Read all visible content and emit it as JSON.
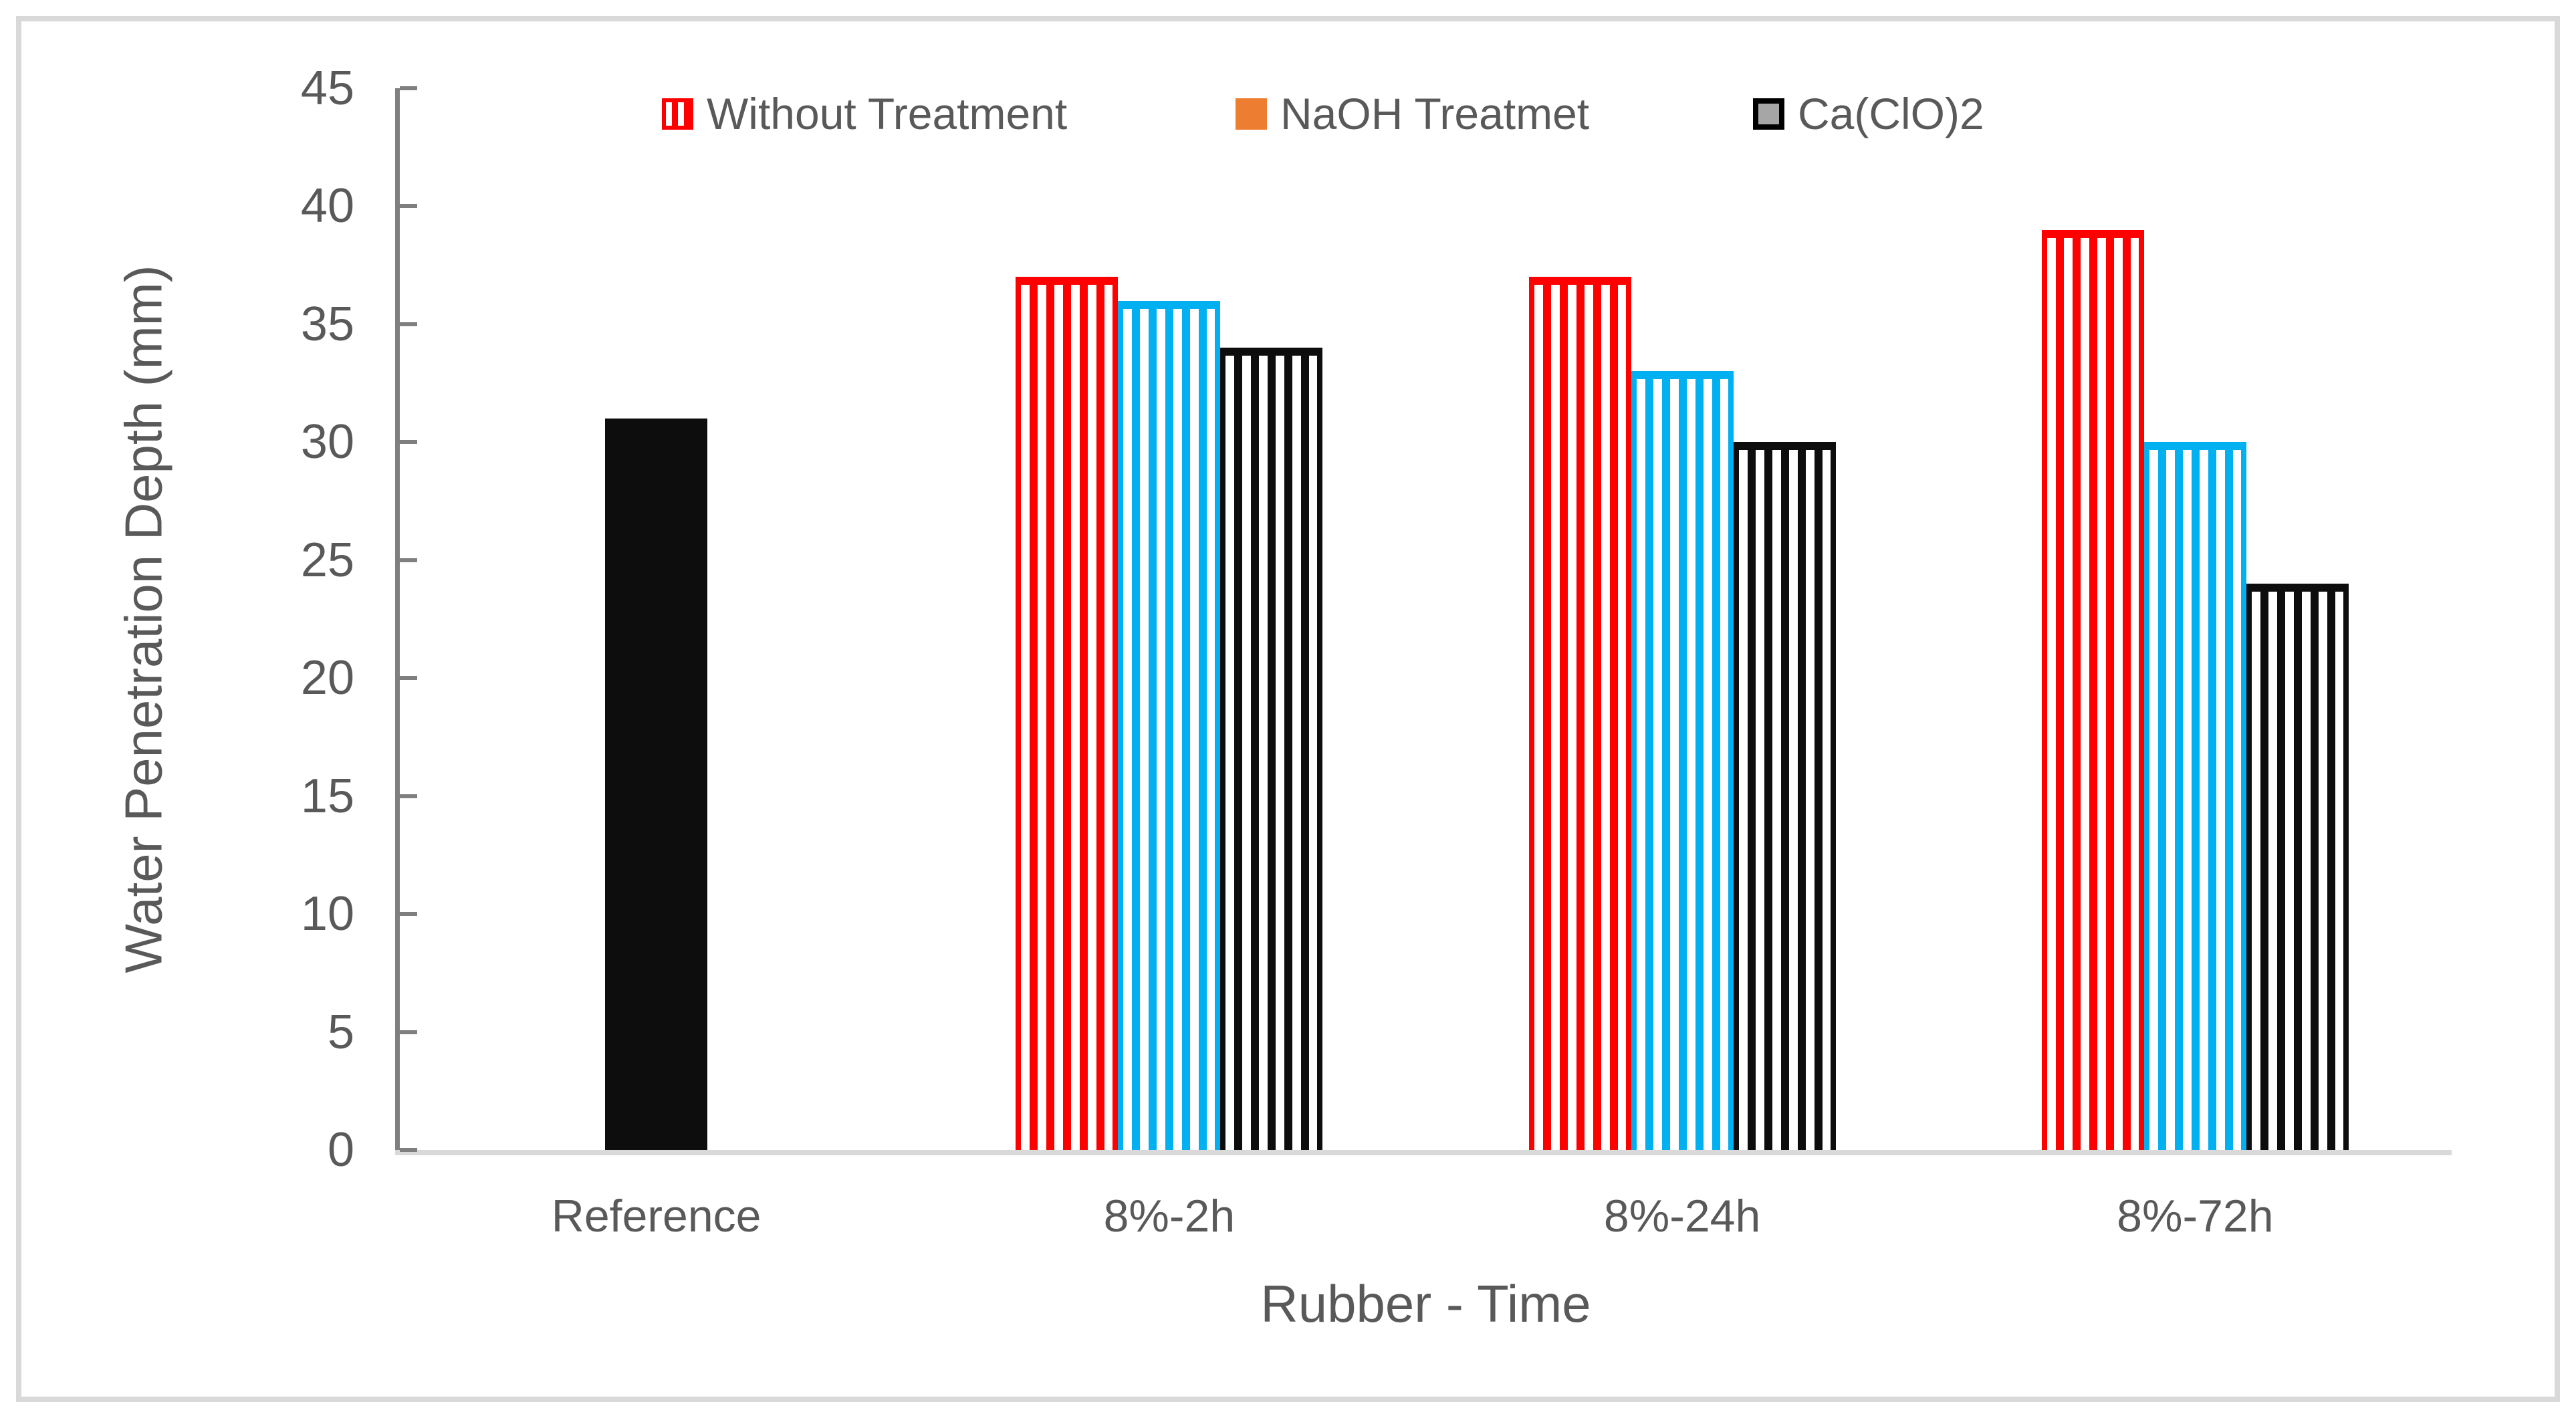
{
  "chart_data": {
    "type": "bar",
    "title": "",
    "xlabel": "Rubber - Time",
    "ylabel": "Water Penetration Depth (mm)",
    "categories": [
      "Reference",
      "8%-2h",
      "8%-24h",
      "8%-72h"
    ],
    "series": [
      {
        "name": "Reference",
        "style": "solid",
        "color": "#0d0d0d",
        "values": [
          31,
          null,
          null,
          null
        ]
      },
      {
        "name": "Without Treatment",
        "style": "striped",
        "color": "#ff0000",
        "values": [
          null,
          37,
          37,
          39
        ]
      },
      {
        "name": "NaOH Treatmet",
        "style": "striped",
        "color": "#00b0f0",
        "values": [
          null,
          36,
          33,
          30
        ]
      },
      {
        "name": "Ca(ClO)2",
        "style": "striped",
        "color": "#0d0d0d",
        "values": [
          null,
          34,
          30,
          24
        ]
      }
    ],
    "ylim": [
      0,
      45
    ],
    "ytick_step": 5,
    "yticks": [
      45,
      40,
      35,
      30,
      25,
      20,
      15,
      10,
      5,
      0
    ],
    "grid": false,
    "legend_position": "top"
  },
  "legend": {
    "items": [
      {
        "label": "Without Treatment",
        "swatch": "red-striped",
        "color": "#ff0000"
      },
      {
        "label": "NaOH Treatmet",
        "swatch": "solid-orange",
        "color": "#ed7d31"
      },
      {
        "label": "Ca(ClO)2",
        "swatch": "gray-black-border",
        "fill": "#a6a6a6",
        "border": "#000000"
      }
    ]
  },
  "colors": {
    "text": "#595959",
    "y_axis_line": "#7f7f7f",
    "x_axis_line": "#d9d9d9",
    "frame_border": "#d9d9d9",
    "background": "#ffffff"
  }
}
